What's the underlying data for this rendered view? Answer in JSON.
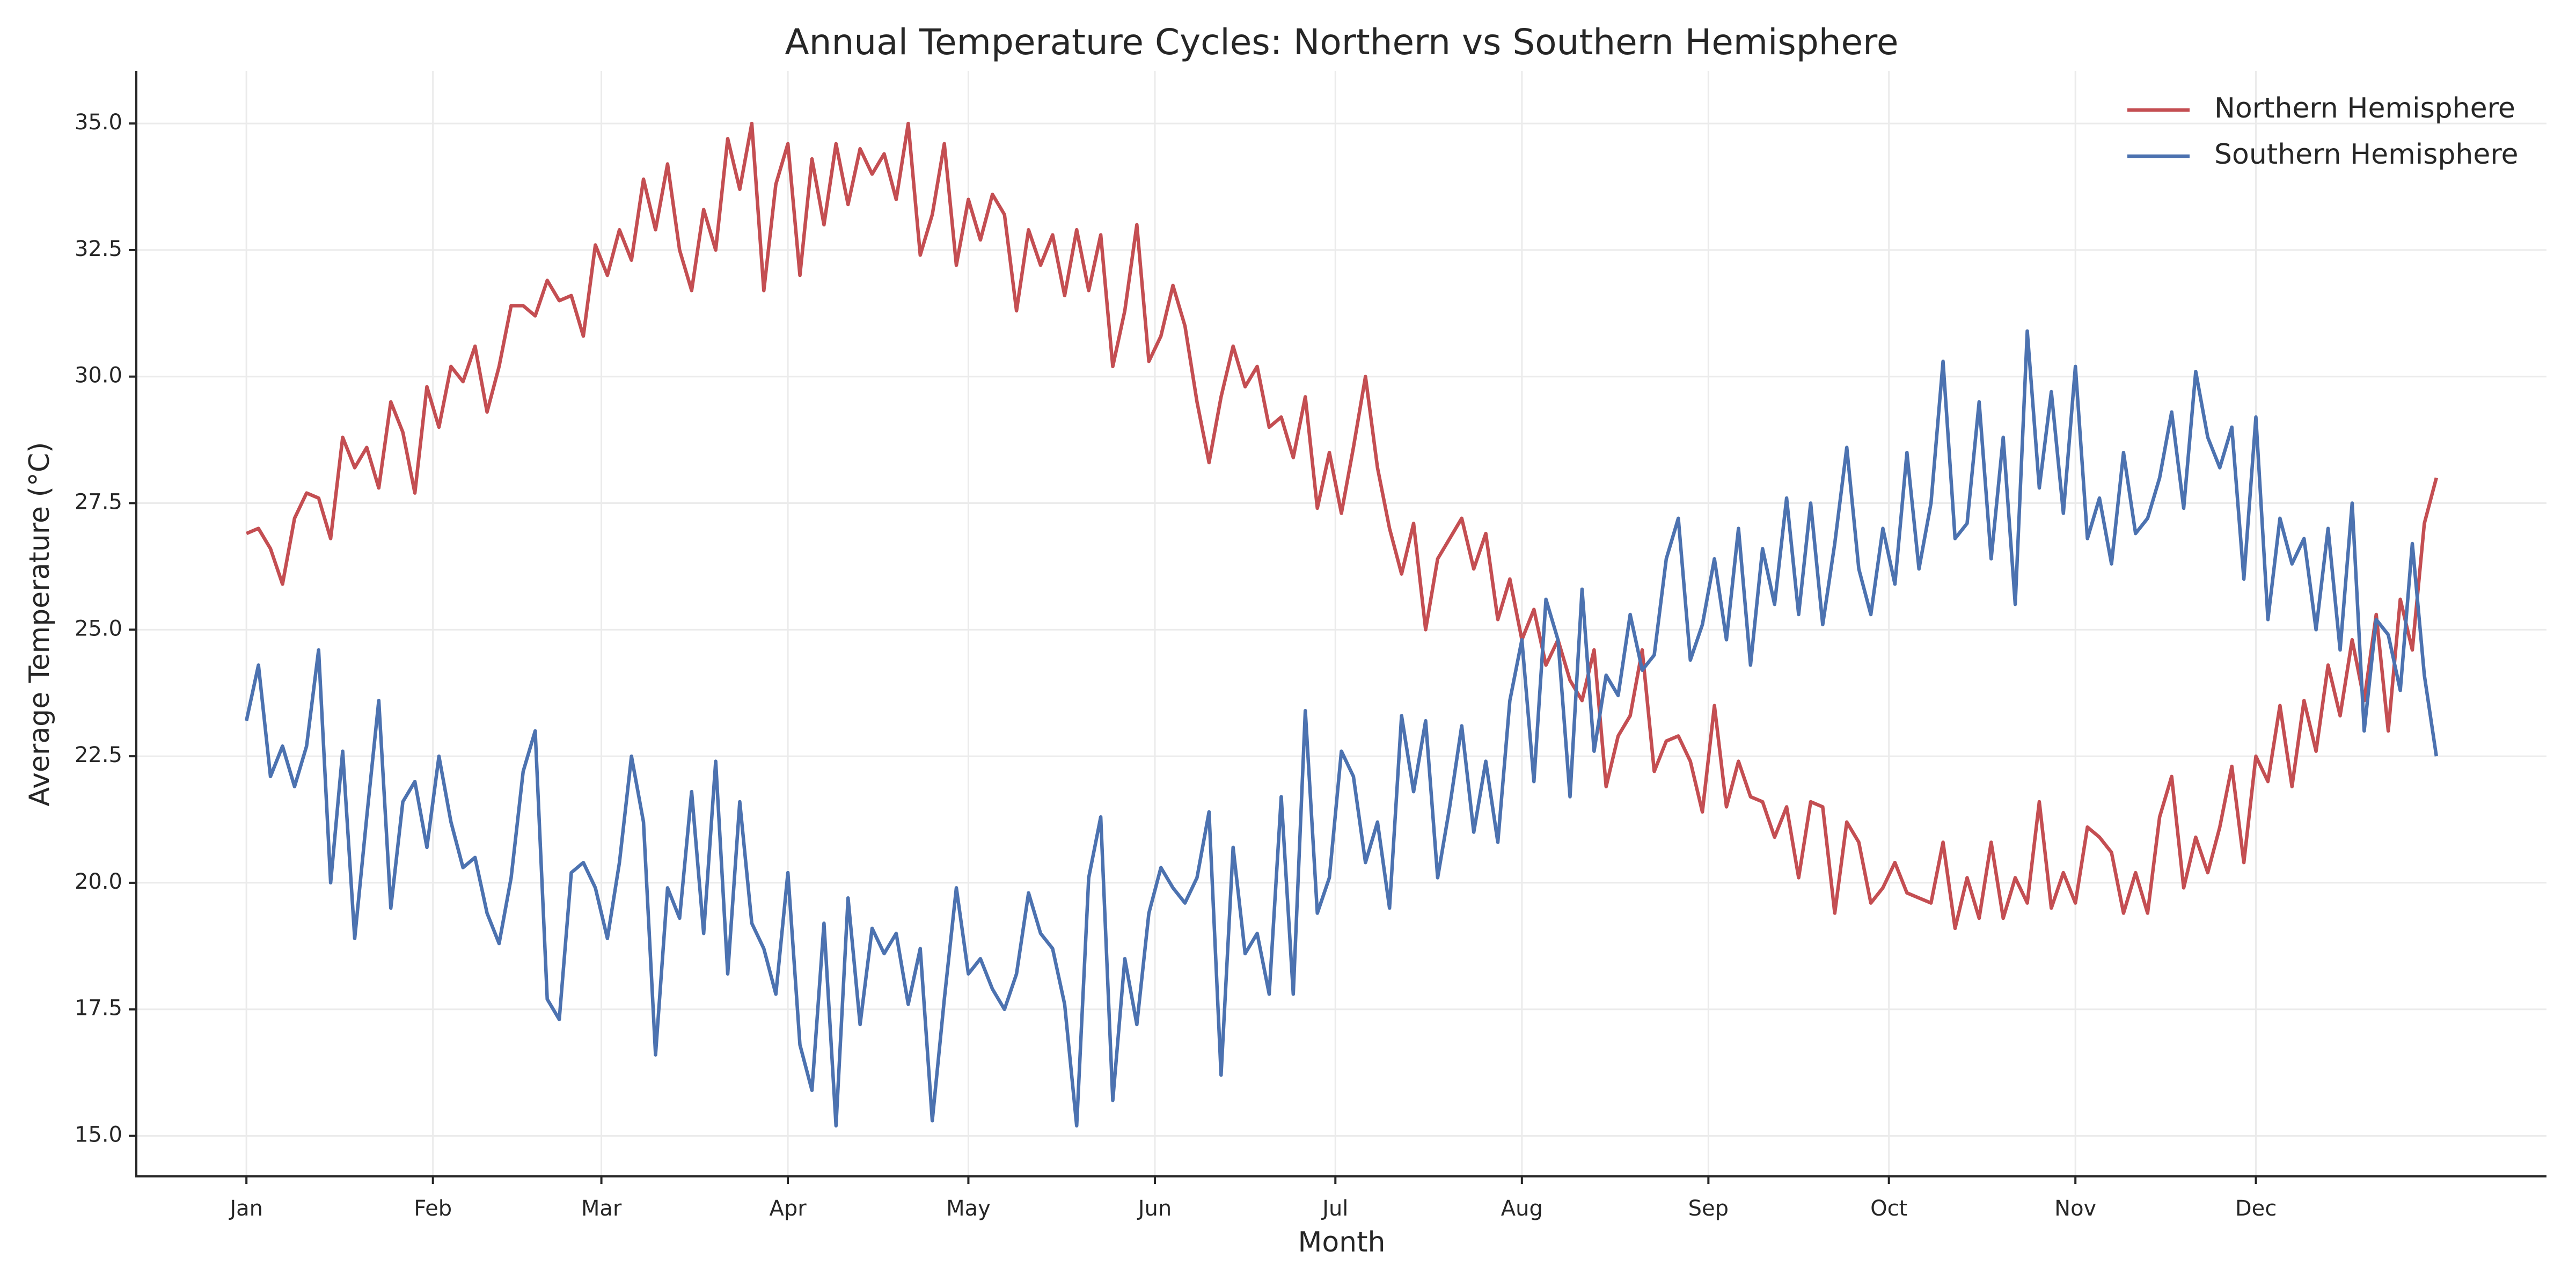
{
  "chart_data": {
    "type": "line",
    "title": "Annual Temperature Cycles: Northern vs Southern Hemisphere",
    "xlabel": "Month",
    "ylabel": "Average Temperature (°C)",
    "x": [
      0,
      2,
      4,
      6,
      8,
      10,
      12,
      14,
      16,
      18,
      20,
      22,
      24,
      26,
      28,
      30,
      32,
      34,
      36,
      38,
      40,
      42,
      44,
      46,
      48,
      50,
      52,
      54,
      56,
      58,
      60,
      62,
      64,
      66,
      68,
      70,
      72,
      74,
      76,
      78,
      80,
      82,
      84,
      86,
      88,
      90,
      92,
      94,
      96,
      98,
      100,
      102,
      104,
      106,
      108,
      110,
      112,
      114,
      116,
      118,
      120,
      122,
      124,
      126,
      128,
      130,
      132,
      134,
      136,
      138,
      140,
      142,
      144,
      146,
      148,
      150,
      152,
      154,
      156,
      158,
      160,
      162,
      164,
      166,
      168,
      170,
      172,
      174,
      176,
      178,
      180,
      182,
      184,
      186,
      188,
      190,
      192,
      194,
      196,
      198,
      200,
      202,
      204,
      206,
      208,
      210,
      212,
      214,
      216,
      218,
      220,
      222,
      224,
      226,
      228,
      230,
      232,
      234,
      236,
      238,
      240,
      242,
      244,
      246,
      248,
      250,
      252,
      254,
      256,
      258,
      260,
      262,
      264,
      266,
      268,
      270,
      272,
      274,
      276,
      278,
      280,
      282,
      284,
      286,
      288,
      290,
      292,
      294,
      296,
      298,
      300,
      302,
      304,
      306,
      308,
      310,
      312,
      314,
      316,
      318,
      320,
      322,
      324,
      326,
      328,
      330,
      332,
      334,
      336,
      338,
      340,
      342,
      344,
      346,
      348,
      350,
      352,
      354,
      356,
      358,
      360,
      362,
      364
    ],
    "series": [
      {
        "name": "Northern Hemisphere",
        "color": "#c44e52",
        "values": [
          26.9,
          27.0,
          26.6,
          25.9,
          27.2,
          27.7,
          27.6,
          26.8,
          28.8,
          28.2,
          28.6,
          27.8,
          29.5,
          28.9,
          27.7,
          29.8,
          29.0,
          30.2,
          29.9,
          30.6,
          29.3,
          30.2,
          31.4,
          31.4,
          31.2,
          31.9,
          31.5,
          31.6,
          30.8,
          32.6,
          32.0,
          32.9,
          32.3,
          33.9,
          32.9,
          34.2,
          32.5,
          31.7,
          33.3,
          32.5,
          34.7,
          33.7,
          35.0,
          31.7,
          33.8,
          34.6,
          32.0,
          34.3,
          33.0,
          34.6,
          33.4,
          34.5,
          34.0,
          34.4,
          33.5,
          35.0,
          32.4,
          33.2,
          34.6,
          32.2,
          33.5,
          32.7,
          33.6,
          33.2,
          31.3,
          32.9,
          32.2,
          32.8,
          31.6,
          32.9,
          31.7,
          32.8,
          30.2,
          31.3,
          33.0,
          30.3,
          30.8,
          31.8,
          31.0,
          29.5,
          28.3,
          29.6,
          30.6,
          29.8,
          30.2,
          29.0,
          29.2,
          28.4,
          29.6,
          27.4,
          28.5,
          27.3,
          28.6,
          30.0,
          28.2,
          27.0,
          26.1,
          27.1,
          25.0,
          26.4,
          26.8,
          27.2,
          26.2,
          26.9,
          25.2,
          26.0,
          24.8,
          25.4,
          24.3,
          24.8,
          24.0,
          23.6,
          24.6,
          21.9,
          22.9,
          23.3,
          24.6,
          22.2,
          22.8,
          22.9,
          22.4,
          21.4,
          23.5,
          21.5,
          22.4,
          21.7,
          21.6,
          20.9,
          21.5,
          20.1,
          21.6,
          21.5,
          19.4,
          21.2,
          20.8,
          19.6,
          19.9,
          20.4,
          19.8,
          19.7,
          19.6,
          20.8,
          19.1,
          20.1,
          19.3,
          20.8,
          19.3,
          20.1,
          19.6,
          21.6,
          19.5,
          20.2,
          19.6,
          21.1,
          20.9,
          20.6,
          19.4,
          20.2,
          19.4,
          21.3,
          22.1,
          19.9,
          20.9,
          20.2,
          21.1,
          22.3,
          20.4,
          22.5,
          22.0,
          23.5,
          21.9,
          23.6,
          22.6,
          24.3,
          23.3,
          24.8,
          23.6,
          25.3,
          23.0,
          25.6,
          24.6,
          27.1,
          28.0
        ]
      },
      {
        "name": "Southern Hemisphere",
        "color": "#4c72b0",
        "values": [
          23.2,
          24.3,
          22.1,
          22.7,
          21.9,
          22.7,
          24.6,
          20.0,
          22.6,
          18.9,
          21.3,
          23.6,
          19.5,
          21.6,
          22.0,
          20.7,
          22.5,
          21.2,
          20.3,
          20.5,
          19.4,
          18.8,
          20.1,
          22.2,
          23.0,
          17.7,
          17.3,
          20.2,
          20.4,
          19.9,
          18.9,
          20.4,
          22.5,
          21.2,
          16.6,
          19.9,
          19.3,
          21.8,
          19.0,
          22.4,
          18.2,
          21.6,
          19.2,
          18.7,
          17.8,
          20.2,
          16.8,
          15.9,
          19.2,
          15.2,
          19.7,
          17.2,
          19.1,
          18.6,
          19.0,
          17.6,
          18.7,
          15.3,
          17.7,
          19.9,
          18.2,
          18.5,
          17.9,
          17.5,
          18.2,
          19.8,
          19.0,
          18.7,
          17.6,
          15.2,
          20.1,
          21.3,
          15.7,
          18.5,
          17.2,
          19.4,
          20.3,
          19.9,
          19.6,
          20.1,
          21.4,
          16.2,
          20.7,
          18.6,
          19.0,
          17.8,
          21.7,
          17.8,
          23.4,
          19.4,
          20.1,
          22.6,
          22.1,
          20.4,
          21.2,
          19.5,
          23.3,
          21.8,
          23.2,
          20.1,
          21.5,
          23.1,
          21.0,
          22.4,
          20.8,
          23.6,
          24.8,
          22.0,
          25.6,
          24.8,
          21.7,
          25.8,
          22.6,
          24.1,
          23.7,
          25.3,
          24.2,
          24.5,
          26.4,
          27.2,
          24.4,
          25.1,
          26.4,
          24.8,
          27.0,
          24.3,
          26.6,
          25.5,
          27.6,
          25.3,
          27.5,
          25.1,
          26.7,
          28.6,
          26.2,
          25.3,
          27.0,
          25.9,
          28.5,
          26.2,
          27.5,
          30.3,
          26.8,
          27.1,
          29.5,
          26.4,
          28.8,
          25.5,
          30.9,
          27.8,
          29.7,
          27.3,
          30.2,
          26.8,
          27.6,
          26.3,
          28.5,
          26.9,
          27.2,
          28.0,
          29.3,
          27.4,
          30.1,
          28.8,
          28.2,
          29.0,
          26.0,
          29.2,
          25.2,
          27.2,
          26.3,
          26.8,
          25.0,
          27.0,
          24.6,
          27.5,
          23.0,
          25.2,
          24.9,
          23.8,
          26.7,
          24.1,
          22.5
        ]
      }
    ],
    "xlim": [
      -18.3,
      382.3
    ],
    "xticks": [
      {
        "value": 0,
        "label": "Jan"
      },
      {
        "value": 31,
        "label": "Feb"
      },
      {
        "value": 59,
        "label": "Mar"
      },
      {
        "value": 90,
        "label": "Apr"
      },
      {
        "value": 120,
        "label": "May"
      },
      {
        "value": 151,
        "label": "Jun"
      },
      {
        "value": 181,
        "label": "Jul"
      },
      {
        "value": 212,
        "label": "Aug"
      },
      {
        "value": 243,
        "label": "Sep"
      },
      {
        "value": 273,
        "label": "Oct"
      },
      {
        "value": 304,
        "label": "Nov"
      },
      {
        "value": 334,
        "label": "Dec"
      }
    ],
    "ylim": [
      14.2,
      36.04
    ],
    "yticks": [
      {
        "value": 15,
        "label": "15.0"
      },
      {
        "value": 17.5,
        "label": "17.5"
      },
      {
        "value": 20,
        "label": "20.0"
      },
      {
        "value": 22.5,
        "label": "22.5"
      },
      {
        "value": 25,
        "label": "25.0"
      },
      {
        "value": 27.5,
        "label": "27.5"
      },
      {
        "value": 30,
        "label": "30.0"
      },
      {
        "value": 32.5,
        "label": "32.5"
      },
      {
        "value": 35,
        "label": "35.0"
      }
    ],
    "grid": true,
    "legend": "upper right"
  }
}
